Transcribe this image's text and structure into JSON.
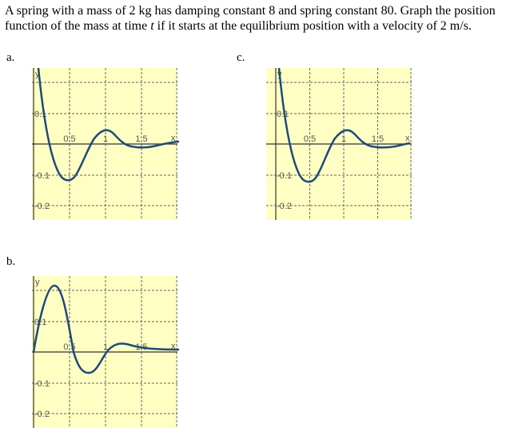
{
  "question": {
    "line1": "A spring with a mass of 2 kg has damping constant 8 and spring constant 80. Graph the position",
    "line2_before": "function of the mass at time ",
    "variable": "t",
    "line2_after": " if it starts at the equilibrium position with a velocity of 2 m/s."
  },
  "options": [
    {
      "label": "a.",
      "y_label": "y",
      "x_label": "x",
      "x_ticks": [
        "0.5",
        "1",
        "1.5"
      ],
      "y_ticks": [
        "0.1",
        "-0.1",
        "-0.2"
      ]
    },
    {
      "label": "b.",
      "y_label": "y",
      "x_label": "x",
      "x_ticks": [
        "0.5",
        "1",
        "1.5"
      ],
      "y_ticks": [
        "0.1",
        "-0.1",
        "-0.2"
      ]
    },
    {
      "label": "c.",
      "y_label": "y",
      "x_label": "x",
      "x_ticks": [
        "0.5",
        "1",
        "1.5"
      ],
      "y_ticks": [
        "0.1",
        "-0.1",
        "-0.2"
      ]
    }
  ]
}
